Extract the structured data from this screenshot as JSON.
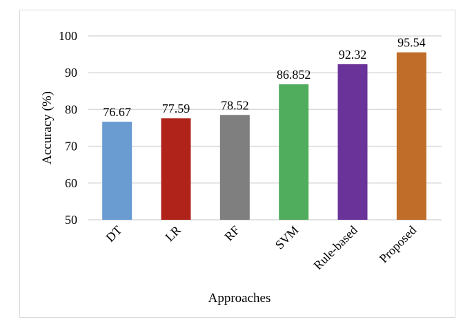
{
  "chart_data": {
    "type": "bar",
    "title": "",
    "xlabel": "Approaches",
    "ylabel": "Accuracy (%)",
    "categories": [
      "DT",
      "LR",
      "RF",
      "SVM",
      "Rule-based",
      "Proposed"
    ],
    "values": [
      76.67,
      77.59,
      78.52,
      86.852,
      92.32,
      95.54
    ],
    "value_labels": [
      "76.67",
      "77.59",
      "78.52",
      "86.852",
      "92.32",
      "95.54"
    ],
    "colors": [
      "#6a9bd1",
      "#b0231b",
      "#7f7f7f",
      "#50ad5e",
      "#6a3399",
      "#c06d2a"
    ],
    "ylim": [
      50,
      100
    ],
    "yticks": [
      "50",
      "60",
      "70",
      "80",
      "90",
      "100"
    ],
    "grid": true,
    "legend": "none"
  }
}
